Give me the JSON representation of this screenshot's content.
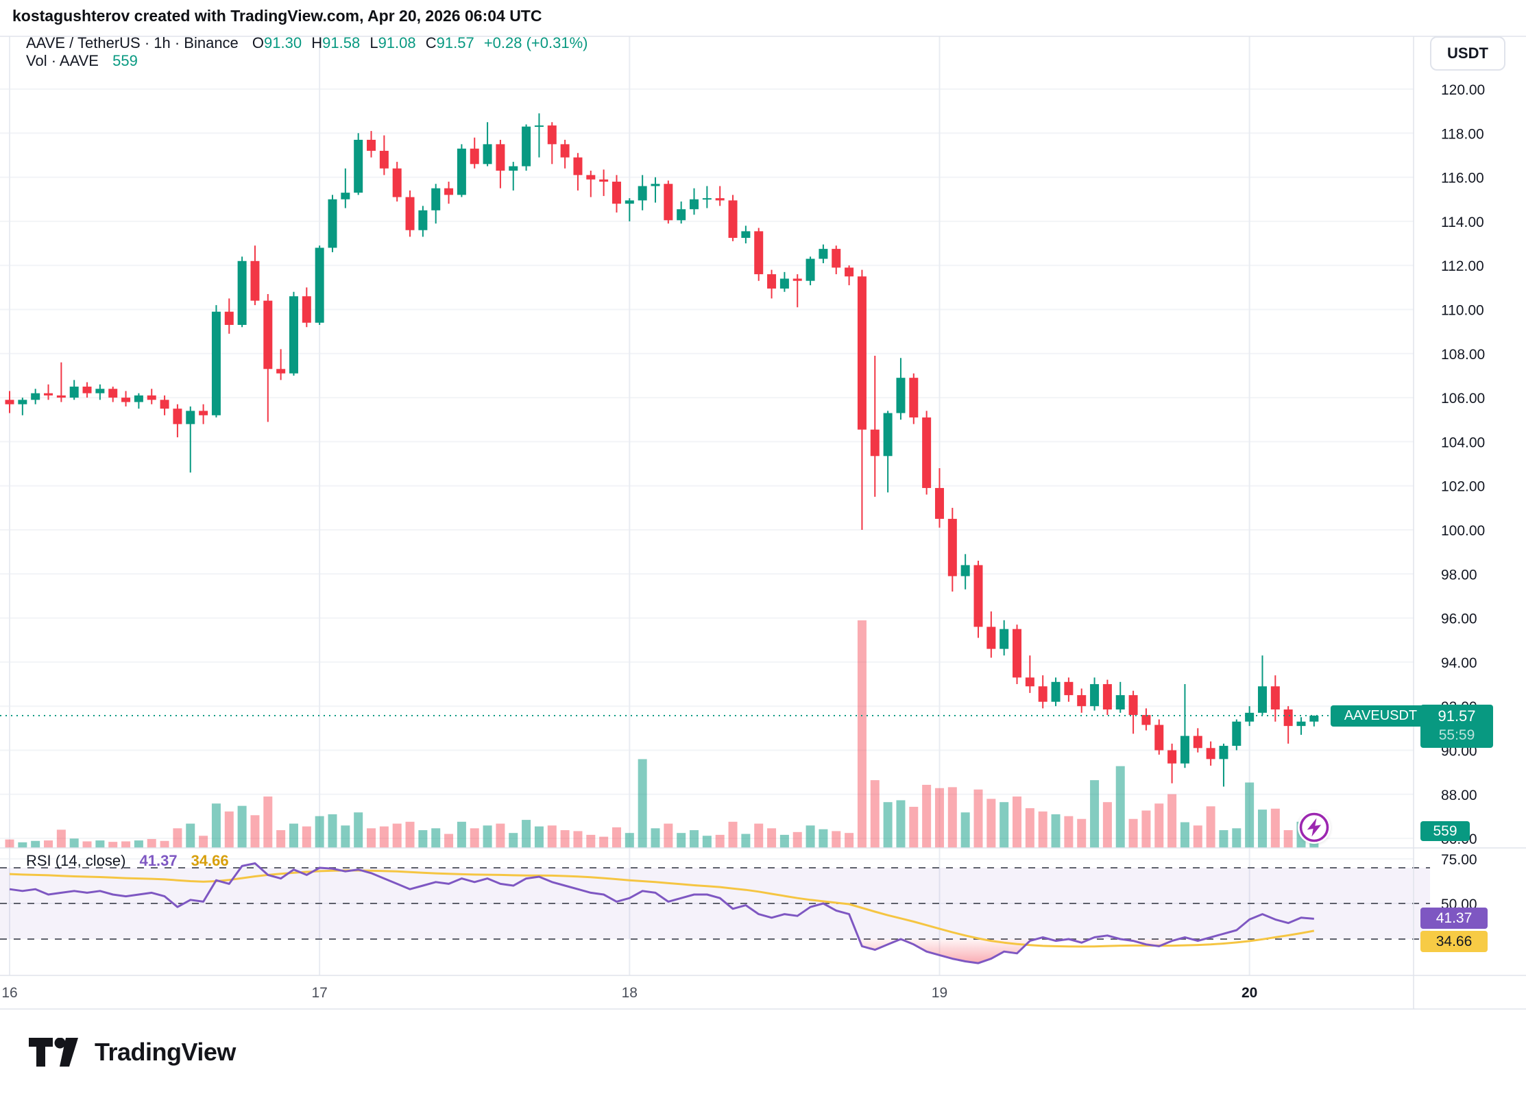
{
  "header": {
    "attribution": "kostagushterov created with TradingView.com, Apr 20, 2026 06:04 UTC"
  },
  "legend": {
    "symbol": "AAVE / TetherUS · 1h · Binance",
    "o_label": "O",
    "o_value": "91.30",
    "h_label": "H",
    "h_value": "91.58",
    "l_label": "L",
    "l_value": "91.08",
    "c_label": "C",
    "c_value": "91.57",
    "change": "+0.28 (+0.31%)",
    "vol_label": "Vol · AAVE",
    "vol_value": "559"
  },
  "axis": {
    "currency_button": "USDT"
  },
  "price_tag": {
    "symbol_label": "AAVEUSDT",
    "price": "91.57",
    "countdown": "55:59",
    "volume": "559"
  },
  "rsi_panel": {
    "title": "RSI (14, close)",
    "value": "41.37",
    "ma_value": "34.66"
  },
  "footer": {
    "brand": "TradingView"
  },
  "colors": {
    "up": "#089981",
    "down": "#f23645",
    "vol_up": "rgba(8,153,129,0.5)",
    "vol_down": "rgba(242,54,69,0.42)",
    "accent": "#089981",
    "rsi_line": "#7e57c2",
    "rsi_ma_line": "#f5c542",
    "rsi_band": "rgba(126,87,194,0.08)",
    "overbought_fill": "#4caf50",
    "oversold_fill": "#f23645",
    "grid_h": "#f2f4f7",
    "grid_v": "#e9ecf2",
    "divider": "#e0e3eb",
    "axis_text": "#131722",
    "time_text": "#4a4e59",
    "dashed_level": "#5d606b"
  },
  "chart_data": {
    "type": "candlestick+volume+rsi",
    "title": "AAVE / TetherUS · 1h · Binance",
    "interval": "1h",
    "legend_note": "last candle O 91.30 H 91.58 L 91.08 C 91.57 (+0.28, +0.31%)",
    "current_price": 91.57,
    "price_ticks": [
      120,
      118,
      116,
      114,
      112,
      110,
      108,
      106,
      104,
      102,
      100,
      98,
      96,
      94,
      92,
      90,
      88,
      86
    ],
    "rsi_ticks": [
      75,
      50
    ],
    "rsi_levels": [
      70,
      50,
      30
    ],
    "day_labels": [
      {
        "label": "16",
        "idx": 0,
        "bold": false
      },
      {
        "label": "17",
        "idx": 24,
        "bold": false
      },
      {
        "label": "18",
        "idx": 48,
        "bold": false
      },
      {
        "label": "19",
        "idx": 72,
        "bold": false
      },
      {
        "label": "20",
        "idx": 96,
        "bold": true
      }
    ],
    "candles": [
      [
        105.9,
        106.3,
        105.3,
        105.7
      ],
      [
        105.7,
        106.0,
        105.2,
        105.9
      ],
      [
        105.9,
        106.4,
        105.7,
        106.2
      ],
      [
        106.2,
        106.6,
        105.9,
        106.1
      ],
      [
        106.1,
        107.6,
        105.8,
        106.0
      ],
      [
        106.0,
        106.8,
        105.9,
        106.5
      ],
      [
        106.5,
        106.7,
        106.0,
        106.2
      ],
      [
        106.2,
        106.6,
        105.9,
        106.4
      ],
      [
        106.4,
        106.5,
        105.8,
        106.0
      ],
      [
        106.0,
        106.3,
        105.6,
        105.8
      ],
      [
        105.8,
        106.2,
        105.5,
        106.1
      ],
      [
        106.1,
        106.4,
        105.7,
        105.9
      ],
      [
        105.9,
        106.1,
        105.2,
        105.5
      ],
      [
        105.5,
        105.7,
        104.2,
        104.8
      ],
      [
        104.8,
        105.6,
        102.6,
        105.4
      ],
      [
        105.4,
        105.7,
        104.8,
        105.2
      ],
      [
        105.2,
        110.2,
        105.1,
        109.9
      ],
      [
        109.9,
        110.5,
        108.9,
        109.3
      ],
      [
        109.3,
        112.4,
        109.2,
        112.2
      ],
      [
        112.2,
        112.9,
        110.2,
        110.4
      ],
      [
        110.4,
        110.7,
        104.9,
        107.3
      ],
      [
        107.3,
        108.2,
        106.8,
        107.1
      ],
      [
        107.1,
        110.8,
        107.0,
        110.6
      ],
      [
        110.6,
        111.0,
        109.2,
        109.4
      ],
      [
        109.4,
        112.9,
        109.3,
        112.8
      ],
      [
        112.8,
        115.2,
        112.6,
        115.0
      ],
      [
        115.0,
        116.4,
        114.6,
        115.3
      ],
      [
        115.3,
        118.0,
        115.2,
        117.7
      ],
      [
        117.7,
        118.1,
        116.9,
        117.2
      ],
      [
        117.2,
        117.9,
        116.1,
        116.4
      ],
      [
        116.4,
        116.7,
        114.9,
        115.1
      ],
      [
        115.1,
        115.4,
        113.3,
        113.6
      ],
      [
        113.6,
        114.7,
        113.3,
        114.5
      ],
      [
        114.5,
        115.7,
        113.9,
        115.5
      ],
      [
        115.5,
        115.8,
        114.8,
        115.2
      ],
      [
        115.2,
        117.5,
        115.1,
        117.3
      ],
      [
        117.3,
        117.8,
        116.4,
        116.6
      ],
      [
        116.6,
        118.5,
        116.5,
        117.5
      ],
      [
        117.5,
        117.7,
        115.5,
        116.3
      ],
      [
        116.3,
        116.7,
        115.4,
        116.5
      ],
      [
        116.5,
        118.4,
        116.3,
        118.3
      ],
      [
        118.3,
        118.9,
        116.9,
        118.35
      ],
      [
        118.35,
        118.5,
        116.6,
        117.5
      ],
      [
        117.5,
        117.7,
        116.4,
        116.9
      ],
      [
        116.9,
        117.1,
        115.4,
        116.1
      ],
      [
        116.1,
        116.3,
        115.1,
        115.9
      ],
      [
        115.9,
        116.35,
        115.15,
        115.8
      ],
      [
        115.8,
        116.1,
        114.4,
        114.8
      ],
      [
        114.8,
        115.05,
        114.0,
        114.95
      ],
      [
        114.95,
        116.1,
        114.5,
        115.6
      ],
      [
        115.6,
        116.0,
        114.85,
        115.7
      ],
      [
        115.7,
        115.85,
        113.9,
        114.05
      ],
      [
        114.05,
        114.9,
        113.9,
        114.55
      ],
      [
        114.55,
        115.5,
        114.3,
        115.0
      ],
      [
        115.0,
        115.6,
        114.6,
        115.05
      ],
      [
        115.05,
        115.6,
        114.7,
        114.95
      ],
      [
        114.95,
        115.2,
        113.1,
        113.25
      ],
      [
        113.25,
        113.8,
        113.0,
        113.55
      ],
      [
        113.55,
        113.7,
        111.3,
        111.6
      ],
      [
        111.6,
        111.8,
        110.5,
        110.95
      ],
      [
        110.95,
        111.7,
        110.8,
        111.4
      ],
      [
        111.4,
        111.6,
        110.1,
        111.3
      ],
      [
        111.3,
        112.4,
        111.1,
        112.3
      ],
      [
        112.3,
        112.95,
        112.1,
        112.75
      ],
      [
        112.75,
        112.9,
        111.6,
        111.9
      ],
      [
        111.9,
        112.0,
        111.1,
        111.5
      ],
      [
        111.5,
        111.8,
        100.0,
        104.55
      ],
      [
        104.55,
        107.9,
        101.5,
        103.35
      ],
      [
        103.35,
        105.4,
        101.7,
        105.3
      ],
      [
        105.3,
        107.8,
        105.0,
        106.9
      ],
      [
        106.9,
        107.1,
        104.8,
        105.1
      ],
      [
        105.1,
        105.4,
        101.6,
        101.9
      ],
      [
        101.9,
        102.8,
        100.1,
        100.5
      ],
      [
        100.5,
        101.0,
        97.2,
        97.9
      ],
      [
        97.9,
        98.9,
        97.3,
        98.4
      ],
      [
        98.4,
        98.6,
        95.1,
        95.6
      ],
      [
        95.6,
        96.3,
        94.2,
        94.6
      ],
      [
        94.6,
        95.9,
        94.3,
        95.5
      ],
      [
        95.5,
        95.7,
        93.0,
        93.3
      ],
      [
        93.3,
        94.3,
        92.6,
        92.9
      ],
      [
        92.9,
        93.4,
        91.9,
        92.2
      ],
      [
        92.2,
        93.3,
        92.0,
        93.1
      ],
      [
        93.1,
        93.3,
        92.2,
        92.5
      ],
      [
        92.5,
        92.8,
        91.7,
        92.0
      ],
      [
        92.0,
        93.3,
        91.8,
        93.0
      ],
      [
        93.0,
        93.2,
        91.6,
        91.85
      ],
      [
        91.85,
        93.1,
        91.7,
        92.5
      ],
      [
        92.5,
        92.7,
        90.75,
        91.6
      ],
      [
        91.6,
        91.9,
        90.9,
        91.15
      ],
      [
        91.15,
        91.4,
        89.8,
        90.0
      ],
      [
        90.0,
        90.3,
        88.5,
        89.4
      ],
      [
        89.4,
        93.0,
        89.2,
        90.65
      ],
      [
        90.65,
        91.0,
        89.9,
        90.1
      ],
      [
        90.1,
        90.4,
        89.3,
        89.6
      ],
      [
        89.6,
        90.3,
        88.35,
        90.2
      ],
      [
        90.2,
        91.4,
        90.0,
        91.3
      ],
      [
        91.3,
        92.0,
        91.1,
        91.7
      ],
      [
        91.7,
        94.3,
        91.6,
        92.9
      ],
      [
        92.9,
        93.4,
        91.3,
        91.85
      ],
      [
        91.85,
        92.0,
        90.3,
        91.1
      ],
      [
        91.1,
        91.5,
        90.7,
        91.3
      ],
      [
        91.3,
        91.58,
        91.08,
        91.57
      ]
    ],
    "volumes": [
      180,
      120,
      150,
      160,
      390,
      200,
      140,
      160,
      130,
      140,
      160,
      190,
      150,
      420,
      520,
      260,
      950,
      780,
      900,
      700,
      1100,
      380,
      520,
      460,
      680,
      720,
      480,
      760,
      420,
      460,
      520,
      560,
      380,
      420,
      300,
      560,
      420,
      480,
      520,
      320,
      600,
      460,
      480,
      380,
      360,
      280,
      240,
      440,
      320,
      1900,
      420,
      520,
      320,
      380,
      260,
      280,
      560,
      300,
      520,
      420,
      280,
      340,
      480,
      400,
      360,
      320,
      4870,
      1450,
      980,
      1020,
      880,
      1350,
      1280,
      1300,
      760,
      1250,
      1050,
      980,
      1100,
      850,
      780,
      720,
      680,
      620,
      1450,
      980,
      1750,
      620,
      800,
      950,
      1150,
      550,
      480,
      890,
      380,
      420,
      1400,
      820,
      840,
      380,
      560,
      559
    ],
    "rsi": [
      58,
      57,
      58,
      55,
      56,
      57,
      56,
      57,
      55,
      54,
      55,
      56,
      54,
      48,
      52,
      51,
      63,
      61,
      71,
      72.5,
      66,
      64,
      69,
      66,
      70,
      69.5,
      68,
      69,
      67,
      64,
      61,
      58,
      60,
      62,
      61,
      64,
      62,
      64,
      61,
      60,
      64,
      65,
      62,
      60,
      58,
      56,
      55,
      51,
      53,
      57,
      56,
      51,
      53,
      55,
      55,
      53,
      47,
      49,
      44,
      42,
      44,
      43,
      48,
      50,
      46,
      44,
      26,
      24,
      27,
      30,
      27,
      23,
      21,
      19,
      17.5,
      16.5,
      19,
      23,
      22,
      29,
      31,
      29,
      30,
      28,
      31,
      32,
      30,
      29,
      27,
      26,
      29,
      31,
      29,
      31,
      33,
      35,
      41,
      44,
      41,
      39,
      42,
      41.37
    ],
    "rsi_ma": [
      66.5,
      66.2,
      66,
      65.8,
      65.5,
      65.2,
      65,
      64.8,
      64.5,
      64.2,
      64,
      63.8,
      63.5,
      63,
      62.5,
      62.2,
      62.5,
      63.2,
      64.2,
      65.2,
      66,
      66.6,
      67.2,
      67.7,
      68.1,
      68.4,
      68.5,
      68.5,
      68.4,
      68.2,
      68,
      67.6,
      67.2,
      66.9,
      66.6,
      66.4,
      66.2,
      66.1,
      66,
      65.8,
      65.7,
      65.7,
      65.6,
      65.4,
      65.1,
      64.7,
      64.2,
      63.6,
      63,
      62.5,
      62,
      61.4,
      60.8,
      60.2,
      59.7,
      59.2,
      58.4,
      57.6,
      56.6,
      55.4,
      54.2,
      53,
      52,
      51.2,
      50.4,
      49.6,
      47.5,
      45.4,
      43.4,
      41.6,
      39.8,
      37.8,
      35.8,
      33.8,
      32,
      30.4,
      29,
      28,
      27.2,
      26.6,
      26.2,
      26,
      25.9,
      25.8,
      25.9,
      26.1,
      26.3,
      26.4,
      26.4,
      26.3,
      26.3,
      26.5,
      26.7,
      27,
      27.5,
      28.1,
      28.9,
      29.9,
      31,
      32.1,
      33.3,
      34.66
    ]
  }
}
